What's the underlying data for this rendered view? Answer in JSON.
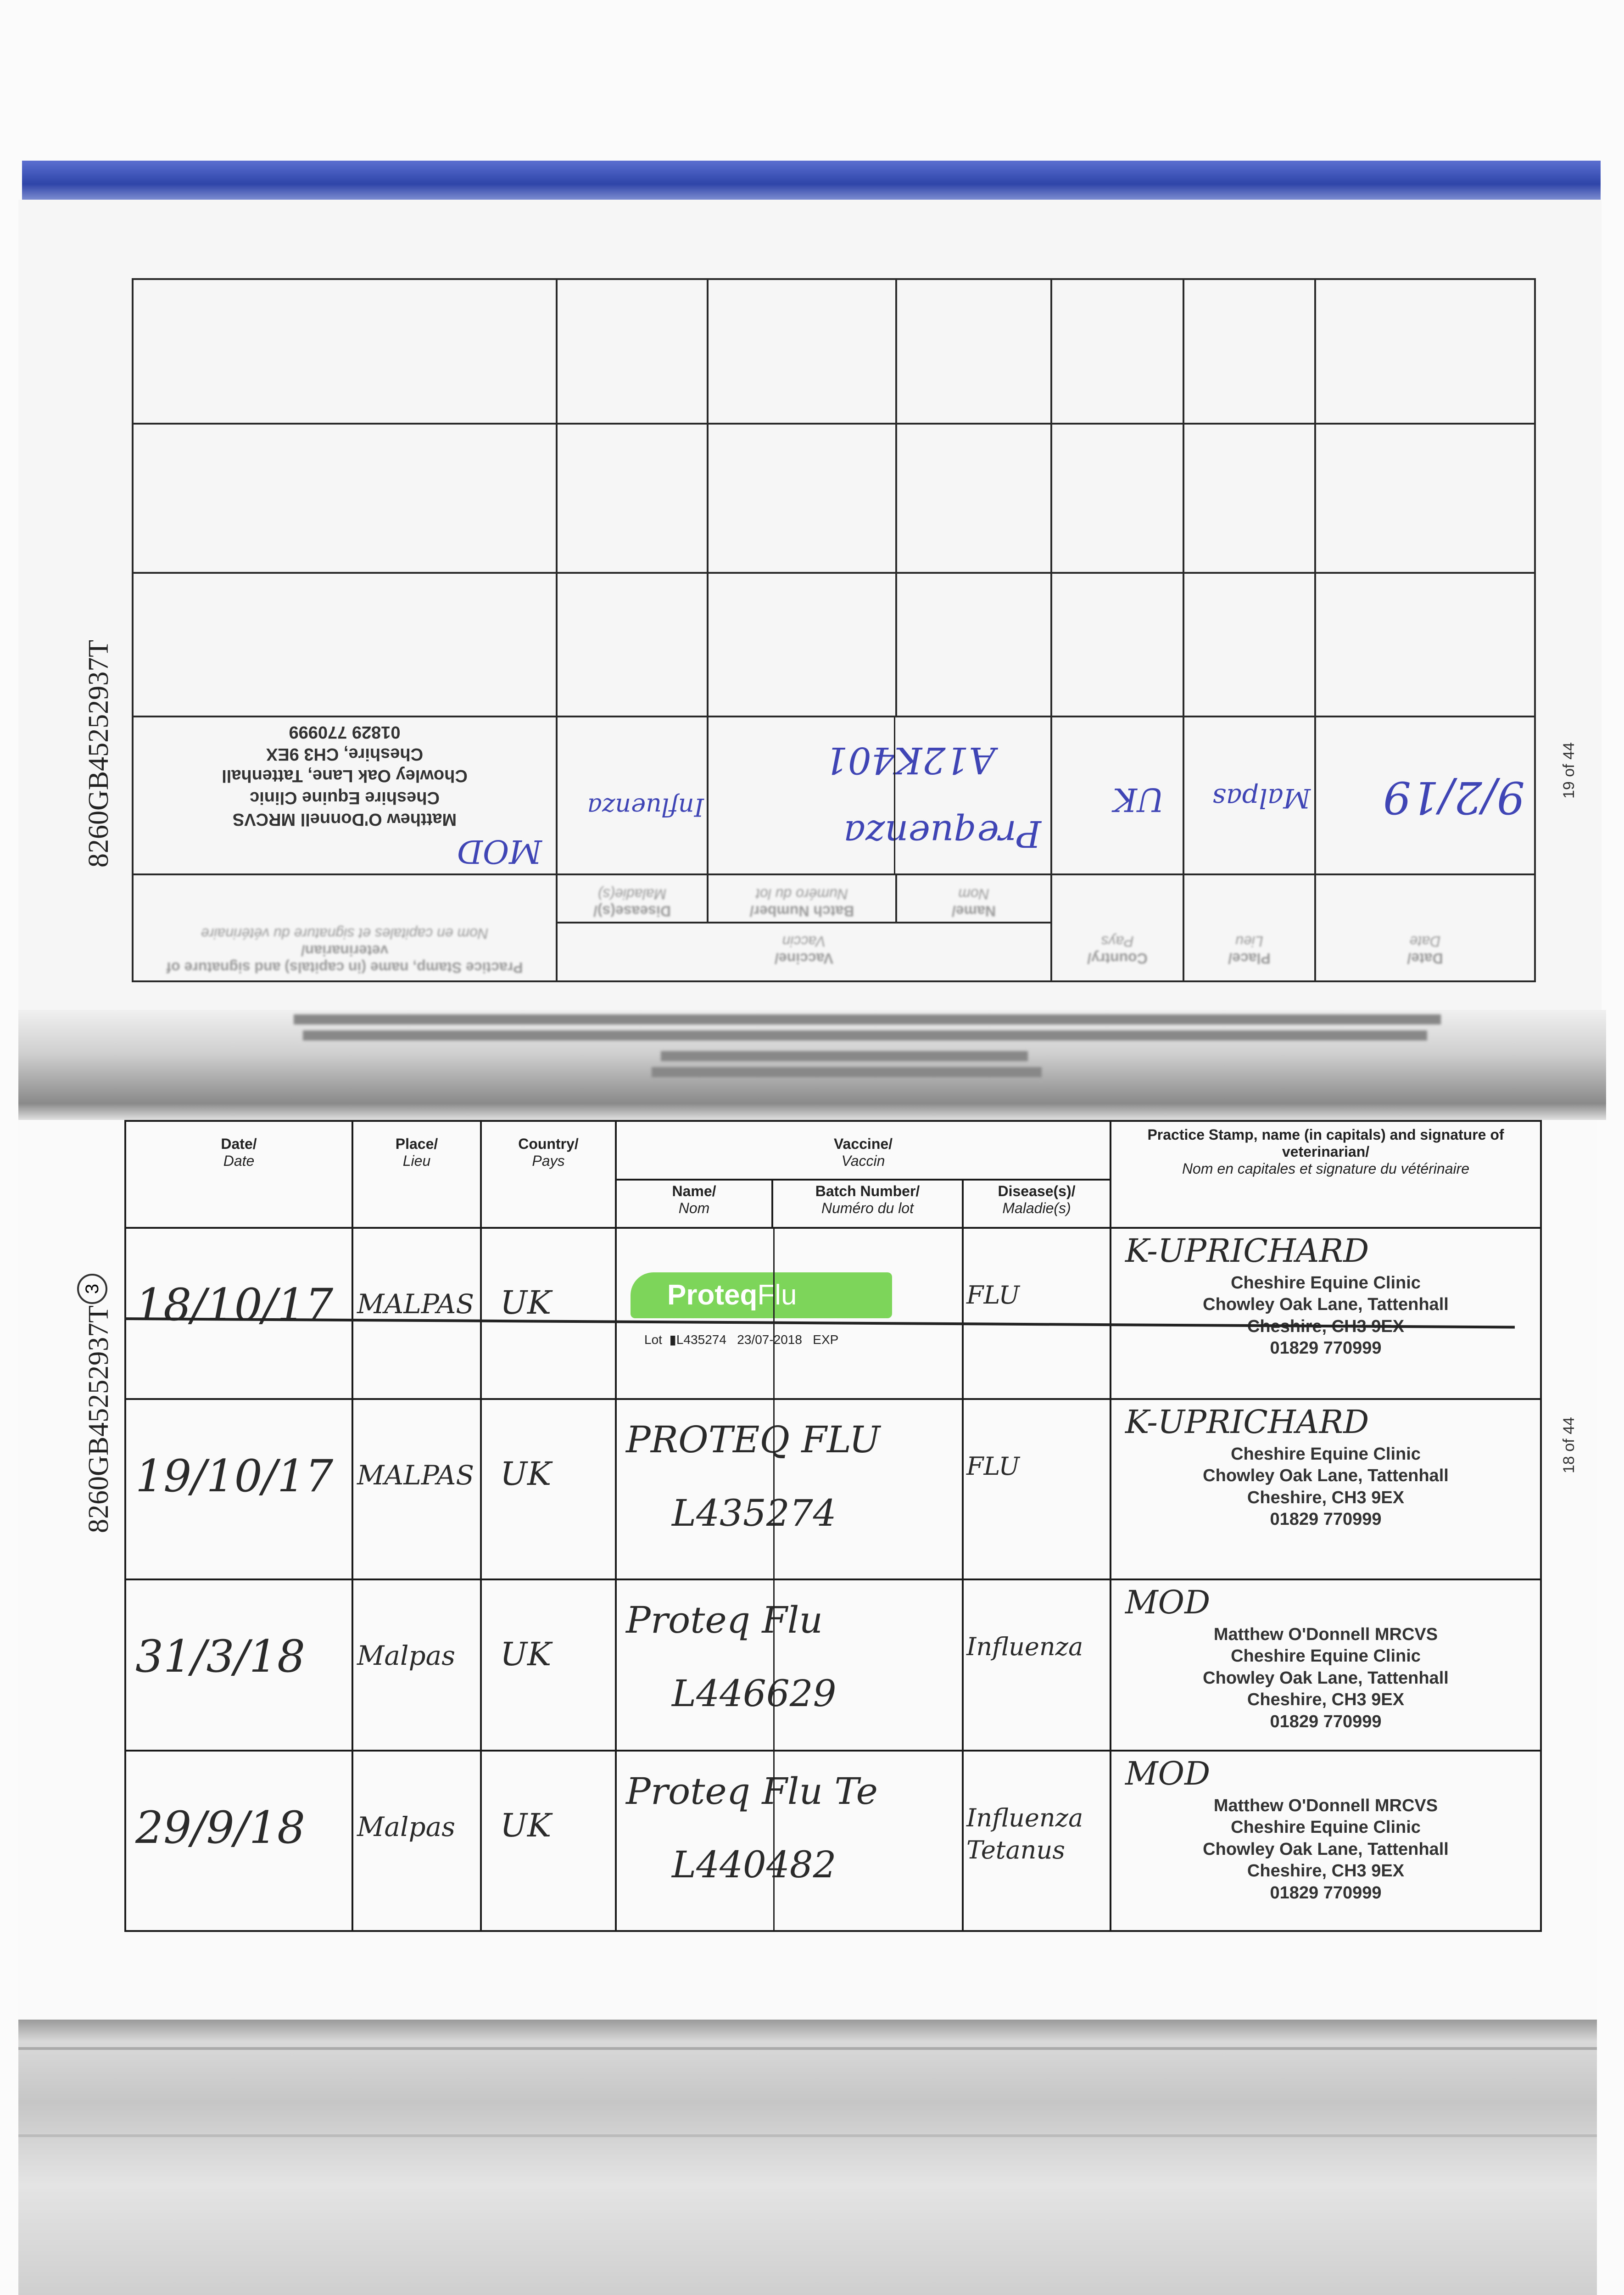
{
  "identifier": "8260GB45252937T",
  "circled_mark": "3",
  "header": {
    "date": "Date/",
    "date_fr": "Date",
    "place": "Place/",
    "place_fr": "Lieu",
    "country": "Country/",
    "country_fr": "Pays",
    "vaccine": "Vaccine/",
    "vaccine_fr": "Vaccin",
    "name": "Name/",
    "name_fr": "Nom",
    "batch": "Batch Number/",
    "batch_fr": "Numéro du lot",
    "disease": "Disease(s)/",
    "disease_fr": "Maladie(s)",
    "stamp": "Practice Stamp, name (in capitals) and signature of veterinarian/",
    "stamp_fr": "Nom en capitales et signature du vétérinaire"
  },
  "top_page": {
    "page_number": "19 of 44",
    "rows": [
      {
        "date": "9/2/19",
        "place": "Malpas",
        "country": "UK",
        "name": "Prequenza",
        "batch": "A12K401",
        "disease": "Influenza",
        "signature": "MOD",
        "stamp": [
          "Matthew O'Donnell MRCVS",
          "Cheshire Equine Clinic",
          "Chowley Oak Lane, Tattenhall",
          "Cheshire, CH3 9EX",
          "01829 770999"
        ]
      }
    ]
  },
  "bottom_page": {
    "page_number": "18 of 44",
    "rows": [
      {
        "date": "18/10/17",
        "place": "MALPAS",
        "country": "UK",
        "struck_through": true,
        "sticker": {
          "brand": "Proteq",
          "brand2": "Flu",
          "lot_label": "Lot",
          "lot": "L435274",
          "expiry": "23/07-2018",
          "exp_label": "EXP"
        },
        "disease": "FLU",
        "signature": "K-UPRICHARD",
        "stamp": [
          "Cheshire Equine Clinic",
          "Chowley Oak Lane, Tattenhall",
          "Cheshire, CH3 9EX",
          "01829 770999"
        ]
      },
      {
        "date": "19/10/17",
        "place": "MALPAS",
        "country": "UK",
        "name": "PROTEQ FLU",
        "batch": "L435274",
        "disease": "FLU",
        "signature": "K-UPRICHARD",
        "stamp": [
          "Cheshire Equine Clinic",
          "Chowley Oak Lane, Tattenhall",
          "Cheshire, CH3 9EX",
          "01829 770999"
        ]
      },
      {
        "date": "31/3/18",
        "place": "Malpas",
        "country": "UK",
        "name": "Proteq Flu",
        "batch": "L446629",
        "disease": "Influenza",
        "signature": "MOD",
        "stamp": [
          "Matthew O'Donnell MRCVS",
          "Cheshire Equine Clinic",
          "Chowley Oak Lane, Tattenhall",
          "Cheshire, CH3 9EX",
          "01829 770999"
        ]
      },
      {
        "date": "29/9/18",
        "place": "Malpas",
        "country": "UK",
        "name": "Proteq Flu Te",
        "batch": "L440482",
        "disease": "Influenza Tetanus",
        "signature": "MOD",
        "stamp": [
          "Matthew O'Donnell MRCVS",
          "Cheshire Equine Clinic",
          "Chowley Oak Lane, Tattenhall",
          "Cheshire, CH3 9EX",
          "01829 770999"
        ]
      }
    ]
  },
  "colors": {
    "ink_blue": "#3f45b5",
    "pencil": "#2a2a2a",
    "sticker_green": "#7dd65a",
    "binding_blue": "#2f45a8"
  }
}
